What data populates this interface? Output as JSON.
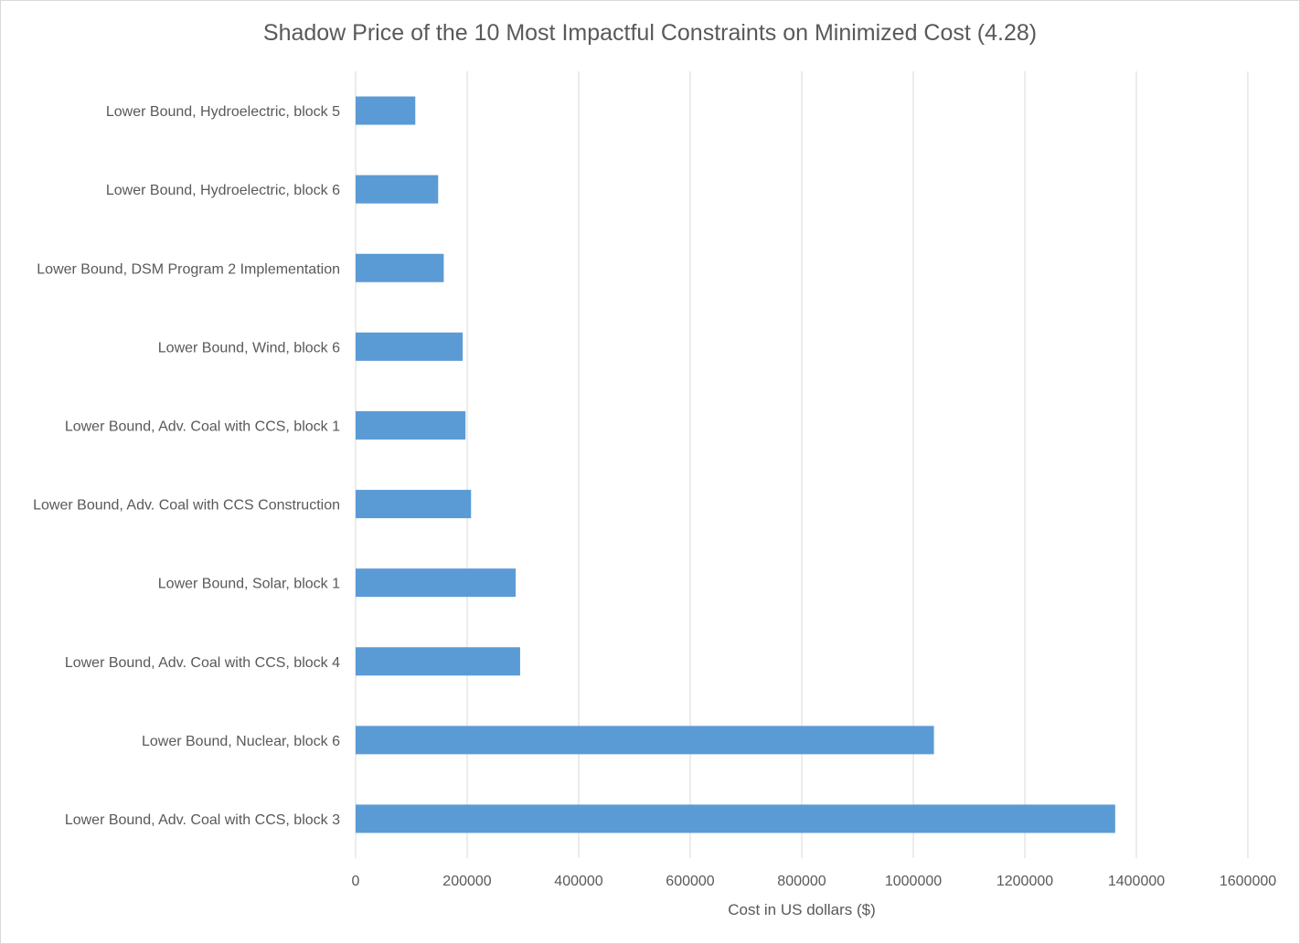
{
  "chart_data": {
    "type": "bar",
    "orientation": "horizontal",
    "title": "Shadow Price of the 10 Most Impactful Constraints on Minimized Cost (4.28)",
    "xlabel": "Cost in US dollars ($)",
    "ylabel": "",
    "xlim": [
      0,
      1600000
    ],
    "x_ticks": [
      "0",
      "200000",
      "400000",
      "600000",
      "800000",
      "1000000",
      "1200000",
      "1400000",
      "1600000"
    ],
    "grid": "vertical",
    "legend": "none",
    "bar_color": "#5b9bd5",
    "categories": [
      "Lower Bound, Hydroelectric, block 5",
      "Lower Bound, Hydroelectric, block 6",
      "Lower Bound, DSM Program 2 Implementation",
      "Lower Bound, Wind, block 6",
      "Lower Bound, Adv. Coal with CCS, block 1",
      "Lower Bound, Adv. Coal with CCS Construction",
      "Lower Bound, Solar, block 1",
      "Lower Bound, Adv. Coal with CCS, block 4",
      "Lower Bound, Nuclear, block 6",
      "Lower Bound, Adv. Coal with CCS, block 3"
    ],
    "values": [
      107000,
      148000,
      158000,
      192000,
      197000,
      207000,
      287000,
      295000,
      1037000,
      1362000
    ]
  }
}
